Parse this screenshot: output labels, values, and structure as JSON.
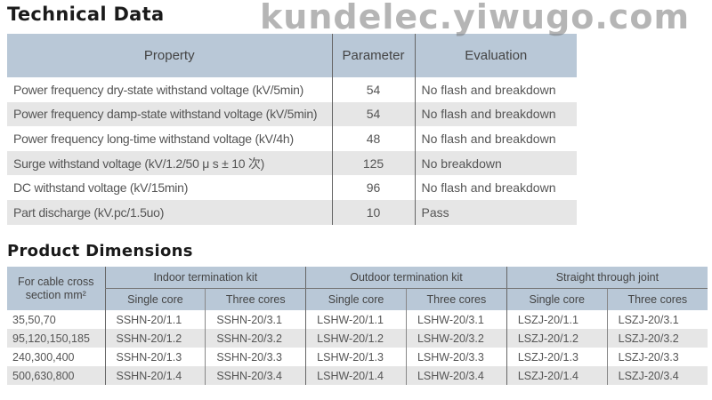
{
  "technical": {
    "title": "Technical Data",
    "headers": [
      "Property",
      "Parameter",
      "Evaluation"
    ],
    "rows": [
      [
        "Power frequency dry-state withstand voltage (kV/5min)",
        "54",
        "No flash and breakdown"
      ],
      [
        "Power frequency damp-state withstand voltage (kV/5min)",
        "54",
        "No flash and breakdown"
      ],
      [
        "Power frequency long-time withstand voltage (kV/4h)",
        "48",
        "No flash and breakdown"
      ],
      [
        "Surge withstand voltage (kV/1.2/50 μ s ± 10 次)",
        "125",
        "No breakdown"
      ],
      [
        "DC withstand voltage (kV/15min)",
        "96",
        "No flash and breakdown"
      ],
      [
        "Part discharge (kV.pc/1.5uo)",
        "10",
        "Pass"
      ]
    ]
  },
  "dimensions": {
    "title": "Product Dimensions",
    "first_header": "For cable cross section mm²",
    "groups": [
      "Indoor termination kit",
      "Outdoor termination kit",
      "Straight through joint"
    ],
    "subheaders": [
      "Single core",
      "Three cores",
      "Single core",
      "Three cores",
      "Single core",
      "Three cores"
    ],
    "rows": [
      [
        "35,50,70",
        "SSHN-20/1.1",
        "SSHN-20/3.1",
        "LSHW-20/1.1",
        "LSHW-20/3.1",
        "LSZJ-20/1.1",
        "LSZJ-20/3.1"
      ],
      [
        "95,120,150,185",
        "SSHN-20/1.2",
        "SSHN-20/3.2",
        "LSHW-20/1.2",
        "LSHW-20/3.2",
        "LSZJ-20/1.2",
        "LSZJ-20/3.2"
      ],
      [
        "240,300,400",
        "SSHN-20/1.3",
        "SSHN-20/3.3",
        "LSHW-20/1.3",
        "LSHW-20/3.3",
        "LSZJ-20/1.3",
        "LSZJ-20/3.3"
      ],
      [
        "500,630,800",
        "SSHN-20/1.4",
        "SSHN-20/3.4",
        "LSHW-20/1.4",
        "LSHW-20/3.4",
        "LSZJ-20/1.4",
        "LSZJ-20/3.4"
      ]
    ]
  },
  "watermark": "kundelec.yiwugo.com",
  "colors": {
    "header_bg": "#b9c8d7",
    "stripe_bg": "#e6e6e6"
  }
}
